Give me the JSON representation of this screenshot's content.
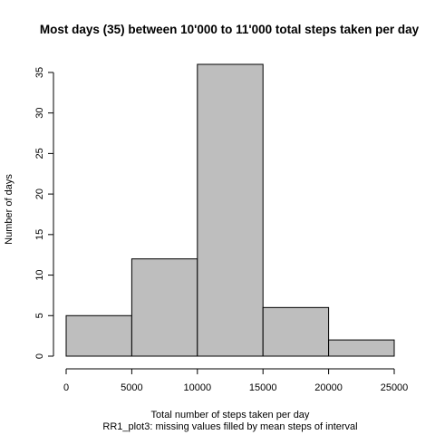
{
  "chart_data": {
    "type": "bar",
    "title": "Most days (35) between 10'000 to 11'000 total steps taken per day",
    "xlabel": "Total number of steps taken per day",
    "subtitle": "RR1_plot3: missing values filled by mean steps of interval",
    "ylabel": "Number of days",
    "bins": [
      [
        0,
        5000
      ],
      [
        5000,
        10000
      ],
      [
        10000,
        15000
      ],
      [
        15000,
        20000
      ],
      [
        20000,
        25000
      ]
    ],
    "values": [
      5,
      12,
      36,
      6,
      2
    ],
    "xlim": [
      0,
      25000
    ],
    "ylim": [
      0,
      36
    ],
    "x_ticks": [
      "0",
      "5000",
      "10000",
      "15000",
      "20000",
      "25000"
    ],
    "y_ticks": [
      "0",
      "5",
      "10",
      "15",
      "20",
      "25",
      "30",
      "35"
    ],
    "bar_color": "#bebebe",
    "grid": false
  }
}
